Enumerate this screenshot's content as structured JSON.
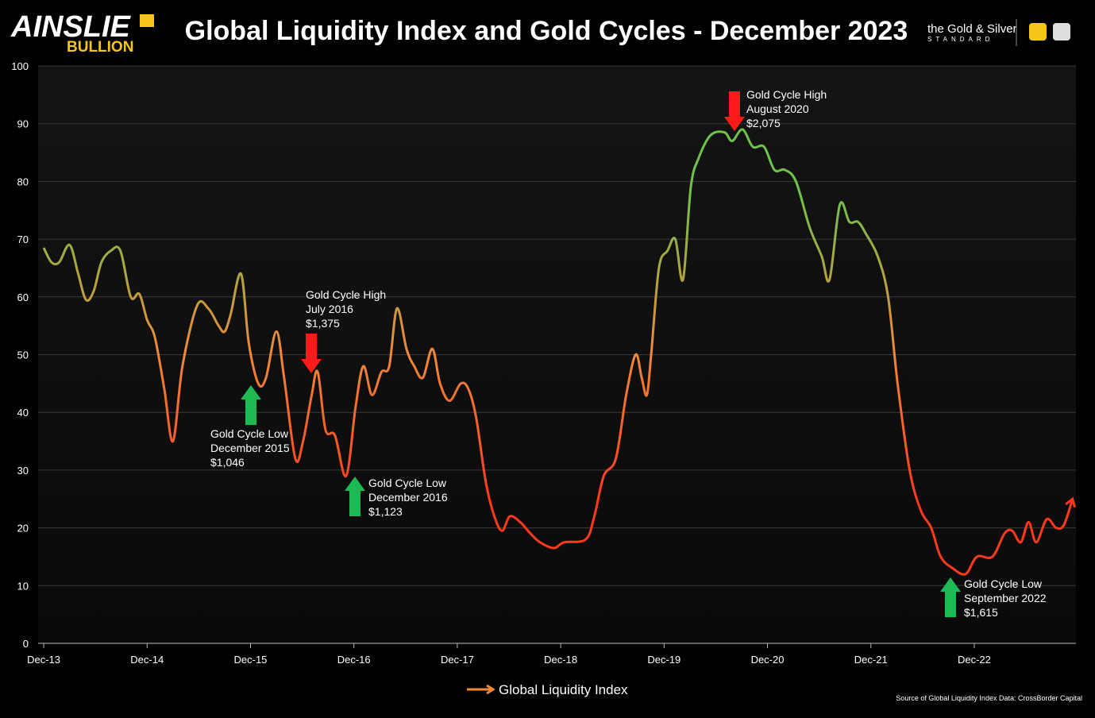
{
  "header": {
    "logo": "AINSLIE",
    "logo_sub": "BULLION",
    "brand_small": "the Gold & Silver",
    "brand_sub": "STANDARD"
  },
  "chart_data": {
    "type": "line",
    "title": "Global Liquidity Index and Gold Cycles - December 2023",
    "x": [
      0,
      0.9,
      1.8,
      3.0,
      4.0,
      4.9,
      5.8,
      6.7,
      7.8,
      8.9,
      10.1,
      11.1,
      12.0,
      12.9,
      14.0,
      15.0,
      16.1,
      17.8,
      19.1,
      20.3,
      21.0,
      21.7,
      22.9,
      23.8,
      24.9,
      25.8,
      27.0,
      27.9,
      29.2,
      30.1,
      31.1,
      31.8,
      32.7,
      33.8,
      35.1,
      36.2,
      37.1,
      38.1,
      39.2,
      40.1,
      41.0,
      42.1,
      43.0,
      44.0,
      45.1,
      46.0,
      47.1,
      48.4,
      49.3,
      50.2,
      51.3,
      52.3,
      53.2,
      54.1,
      55.3,
      56.5,
      57.6,
      59.2,
      60.4,
      62.9,
      63.9,
      65.0,
      66.4,
      67.6,
      68.7,
      69.4,
      70.0,
      70.5,
      71.4,
      72.4,
      73.3,
      74.2,
      75.1,
      76.0,
      77.4,
      79.0,
      79.9,
      81.1,
      82.3,
      83.6,
      84.8,
      86.0,
      87.3,
      88.9,
      90.3,
      91.2,
      92.4,
      93.5,
      94.5,
      95.4,
      96.8,
      98.0,
      99.1,
      100.5,
      101.8,
      103.0,
      104.1,
      105.5,
      107.0,
      108.3,
      110.1,
      111.5,
      112.4,
      113.4,
      114.3,
      115.2,
      116.4,
      117.5,
      118.4,
      119.4
    ],
    "series": [
      {
        "name": "Global Liquidity Index",
        "color": "#f0883a",
        "values": [
          68.5,
          66,
          66,
          69,
          64,
          59.5,
          61,
          66,
          68,
          68,
          60,
          60.5,
          56,
          53,
          44,
          35,
          48,
          58.5,
          58,
          55,
          54,
          57,
          64,
          52,
          45,
          46,
          54,
          46,
          32,
          35,
          43,
          47,
          37,
          36,
          29,
          41,
          48,
          43,
          47,
          48,
          58,
          51,
          48,
          46,
          51,
          45,
          42,
          45,
          44,
          39,
          28,
          22,
          19.5,
          22,
          21,
          19,
          17.5,
          16.5,
          17.5,
          18,
          22,
          29,
          32,
          43,
          50,
          46,
          43,
          50,
          65,
          68,
          70,
          63,
          79,
          84,
          88,
          88.5,
          87,
          89,
          86,
          86,
          82,
          82,
          80,
          72,
          67,
          63,
          76,
          73,
          73,
          71,
          67,
          60,
          45,
          30,
          23,
          20,
          15,
          13,
          12,
          15,
          15,
          19,
          19.5,
          17.5,
          21,
          17.5,
          21.5,
          20,
          20.5,
          25
        ]
      }
    ],
    "line_colors": {
      "low": "#ff3a1c",
      "mid": "#f0883a",
      "high": "#6fc24a"
    },
    "xlim": [
      -0.65,
      119.8
    ],
    "xticks": [
      {
        "value": 0,
        "label": "Dec-13"
      },
      {
        "value": 12,
        "label": "Dec-14"
      },
      {
        "value": 24,
        "label": "Dec-15"
      },
      {
        "value": 36,
        "label": "Dec-16"
      },
      {
        "value": 48,
        "label": "Dec-17"
      },
      {
        "value": 60,
        "label": "Dec-18"
      },
      {
        "value": 72,
        "label": "Dec-19"
      },
      {
        "value": 84,
        "label": "Dec-20"
      },
      {
        "value": 96,
        "label": "Dec-21"
      },
      {
        "value": 108,
        "label": "Dec-22"
      }
    ],
    "ylim": [
      0,
      100
    ],
    "yticks": [
      0,
      10,
      20,
      30,
      40,
      50,
      60,
      70,
      80,
      90,
      100
    ],
    "grid": true,
    "legend": "bottom",
    "annotations": [
      {
        "lines": [
          "Gold Cycle Low",
          "December 2015",
          "$1,046"
        ]
      },
      {
        "lines": [
          "Gold Cycle High",
          "July 2016",
          "$1,375"
        ]
      },
      {
        "lines": [
          "Gold Cycle Low",
          "December 2016",
          "$1,123"
        ]
      },
      {
        "lines": [
          "Gold Cycle High",
          "August 2020",
          "$2,075"
        ]
      },
      {
        "lines": [
          "Gold Cycle Low",
          "September 2022",
          "$1,615"
        ]
      }
    ],
    "source": "Source of Global Liquidity Index Data: CrossBorder Capital"
  }
}
